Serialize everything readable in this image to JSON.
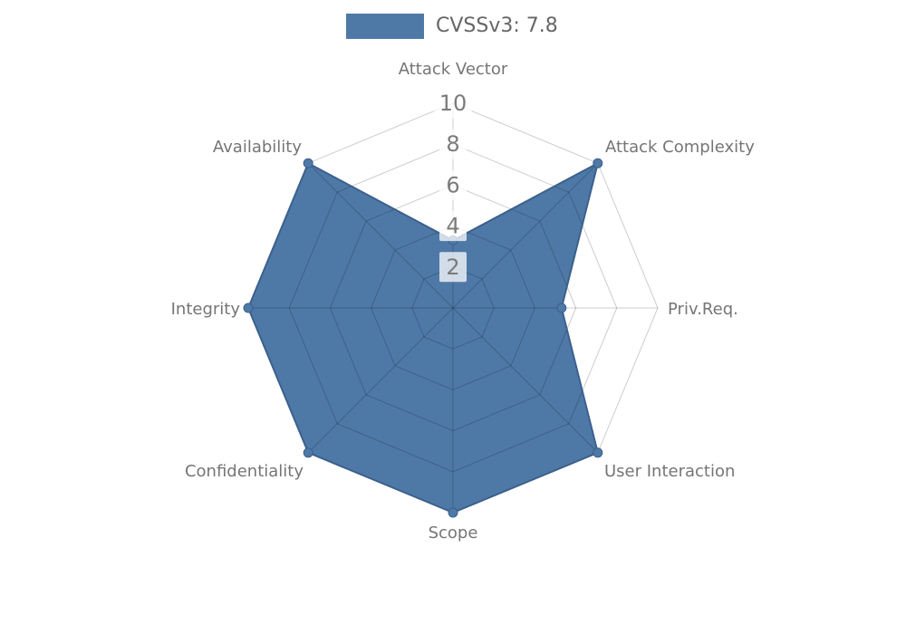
{
  "legend": {
    "label": "CVSSv3: 7.8"
  },
  "chart_data": {
    "type": "radar",
    "title": "CVSSv3: 7.8",
    "categories": [
      "Attack Vector",
      "Attack Complexity",
      "Priv.Req.",
      "User Interaction",
      "Scope",
      "Confidentiality",
      "Integrity",
      "Availability"
    ],
    "series": [
      {
        "name": "CVSSv3: 7.8",
        "values": [
          3.3,
          10,
          5.3,
          10,
          10,
          10,
          10,
          10
        ]
      }
    ],
    "radial_ticks": [
      2,
      4,
      6,
      8,
      10
    ],
    "range": [
      0,
      10
    ],
    "grid": true,
    "grid_rings": 5,
    "legend_position": "top-center",
    "colors": {
      "fill": "#4e79a7",
      "outline": "#3b608c",
      "marker": "#4e79a7",
      "grid": "rgba(0,0,0,0.2)",
      "axis_label": "#757575",
      "tick_label": "#7b7b7b",
      "tick_box": "#ffffff",
      "legend_text": "#666666",
      "background": "#ffffff"
    }
  }
}
